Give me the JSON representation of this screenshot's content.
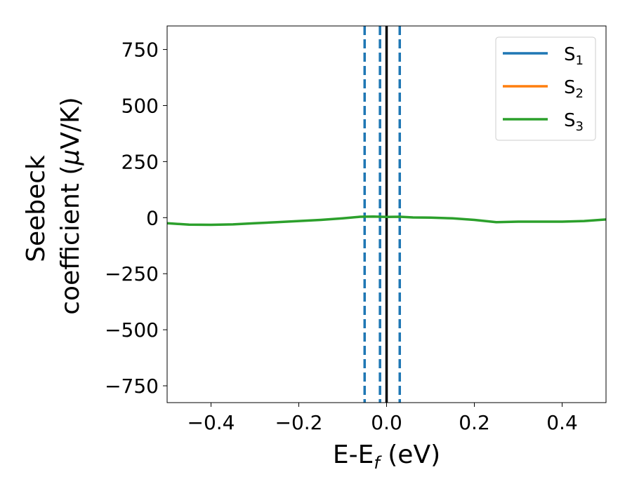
{
  "chart_data": {
    "type": "line",
    "xlabel": {
      "main": "E-E",
      "sub": "f",
      "unit": " (eV)"
    },
    "ylabel": {
      "line1": "Seebeck",
      "line2": "coefficient  (",
      "mu": "μ",
      "unit": "V/K)"
    },
    "xlim": [
      -0.5,
      0.5
    ],
    "ylim": [
      -825,
      855
    ],
    "xticks": [
      -0.4,
      -0.2,
      0.0,
      0.2,
      0.4
    ],
    "xtick_labels": [
      "−0.4",
      "−0.2",
      "0.0",
      "0.2",
      "0.4"
    ],
    "yticks": [
      750,
      500,
      250,
      0,
      -250,
      -500,
      -750
    ],
    "ytick_labels": [
      "750",
      "500",
      "250",
      "0",
      "−250",
      "−500",
      "−750"
    ],
    "grid": false,
    "legend_position": "top-right",
    "series": [
      {
        "name": "S",
        "sub": "1",
        "color": "#1f77b4",
        "x": [],
        "y": []
      },
      {
        "name": "S",
        "sub": "2",
        "color": "#ff7f0e",
        "x": [],
        "y": []
      },
      {
        "name": "S",
        "sub": "3",
        "color": "#2ca02c",
        "x": [
          -0.5,
          -0.45,
          -0.4,
          -0.35,
          -0.3,
          -0.25,
          -0.2,
          -0.15,
          -0.1,
          -0.06,
          -0.03,
          0.0,
          0.03,
          0.06,
          0.1,
          0.15,
          0.2,
          0.25,
          0.3,
          0.35,
          0.4,
          0.45,
          0.5
        ],
        "y": [
          -25,
          -31,
          -32,
          -30,
          -25,
          -20,
          -15,
          -10,
          -3,
          4,
          5,
          3,
          4,
          1,
          0,
          -3,
          -10,
          -20,
          -18,
          -18,
          -18,
          -15,
          -8
        ]
      }
    ],
    "vlines": [
      {
        "x": -0.05,
        "style": "dashed",
        "color": "#1f77b4"
      },
      {
        "x": -0.015,
        "style": "dashed",
        "color": "#1f77b4"
      },
      {
        "x": 0.03,
        "style": "dashed",
        "color": "#1f77b4"
      },
      {
        "x": 0.0,
        "style": "solid",
        "color": "#000000"
      }
    ]
  }
}
